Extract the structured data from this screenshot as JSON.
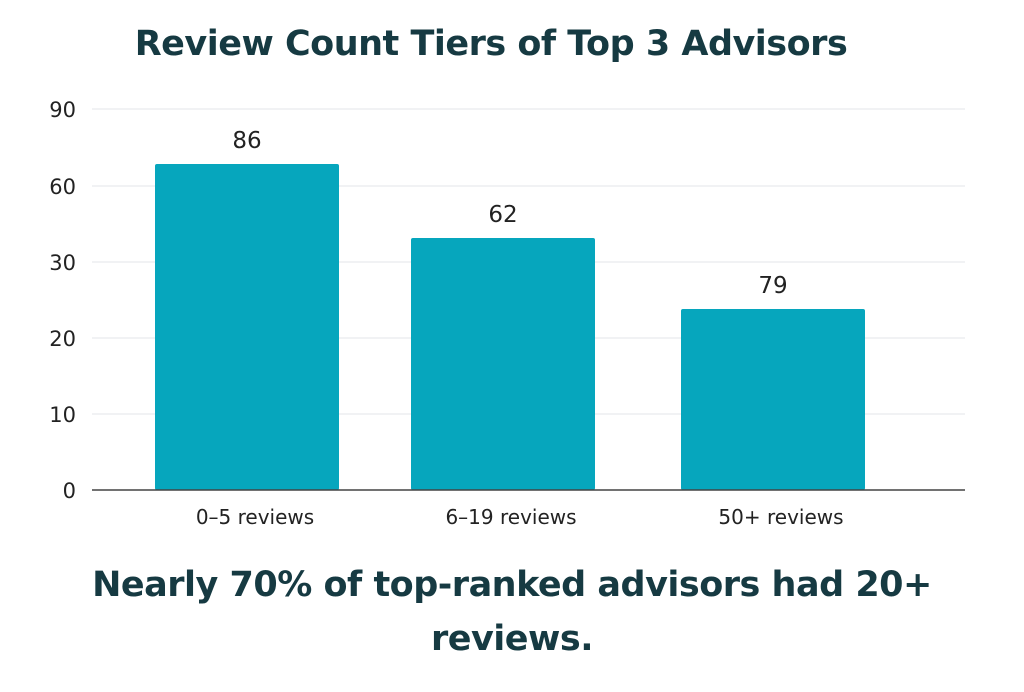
{
  "chart_data": {
    "type": "bar",
    "title": "Review Count Tiers of Top 3 Advisors",
    "xlabel": "",
    "ylabel": "",
    "categories": [
      "0–5 reviews",
      "6–19 reviews",
      "50+ reviews"
    ],
    "values": [
      86,
      62,
      79
    ],
    "ytick_labels": [
      "0",
      "10",
      "20",
      "30",
      "60",
      "90"
    ],
    "grid": true,
    "bar_color": "#06a6bd"
  },
  "caption": {
    "line1": "Nearly 70% of top-ranked advisors had 20+",
    "line2": "reviews."
  }
}
